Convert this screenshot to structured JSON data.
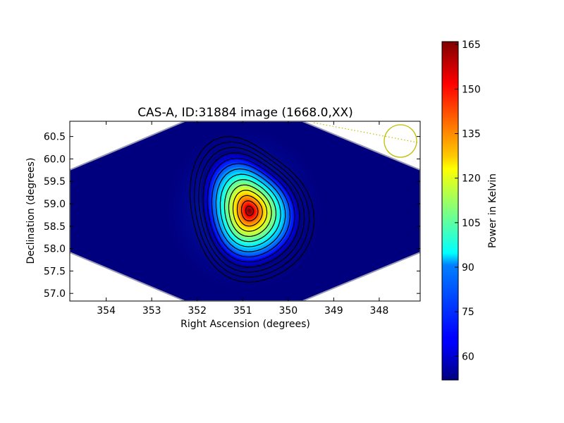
{
  "chart_data": {
    "type": "heatmap",
    "title": "CAS-A, ID:31884 image (1668.0,XX)",
    "xlabel": "Right Ascension (degrees)",
    "ylabel": "Declination (degrees)",
    "x_axis_inverted": true,
    "xlim": [
      354.8,
      347.1
    ],
    "ylim": [
      56.83,
      60.84
    ],
    "x_ticks": [
      354,
      353,
      352,
      351,
      350,
      349,
      348
    ],
    "x_tick_labels": [
      "354",
      "353",
      "352",
      "351",
      "350",
      "349",
      "348"
    ],
    "y_ticks": [
      57.0,
      57.5,
      58.0,
      58.5,
      59.0,
      59.5,
      60.0,
      60.5
    ],
    "y_tick_labels": [
      "57.0",
      "57.5",
      "58.0",
      "58.5",
      "59.0",
      "59.5",
      "60.0",
      "60.5"
    ],
    "colorbar": {
      "label": "Power in Kelvin",
      "range": [
        52,
        166
      ],
      "ticks": [
        60,
        75,
        90,
        105,
        120,
        135,
        150,
        165
      ],
      "tick_labels": [
        "60",
        "75",
        "90",
        "105",
        "120",
        "135",
        "150",
        "165"
      ],
      "colormap": "jet"
    },
    "source": {
      "peak_ra": 350.85,
      "peak_dec": 58.84,
      "peak_value": 166,
      "background_value": 52
    },
    "beam_marker": {
      "ra": 347.45,
      "dec": 60.38,
      "color": "#bfbf00"
    },
    "grid": false,
    "contours": 14
  }
}
